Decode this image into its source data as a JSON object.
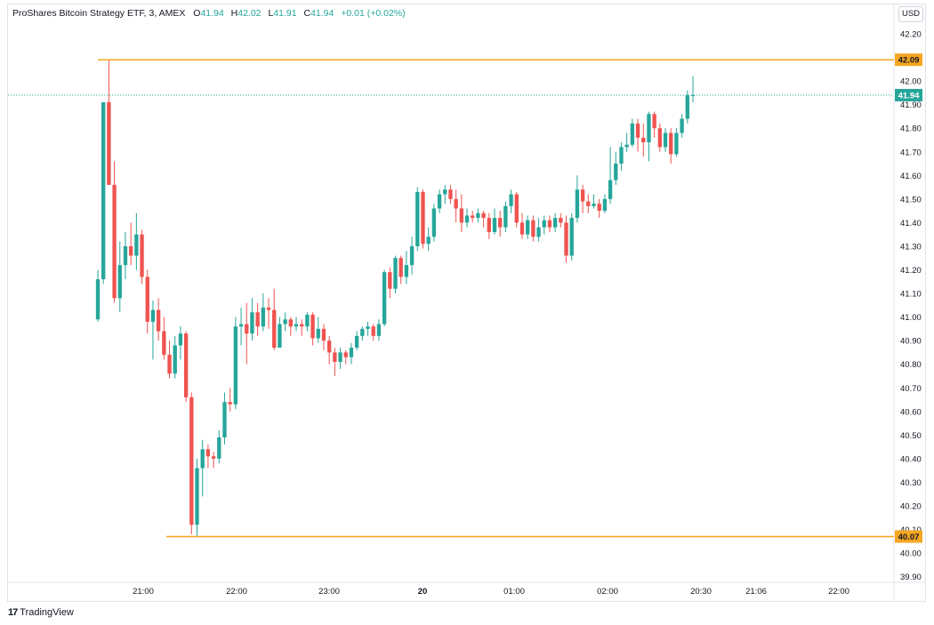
{
  "legend": {
    "title": "ProShares Bitcoin Strategy ETF, 3, AMEX",
    "o_key": "O",
    "o_val": "41.94",
    "h_key": "H",
    "h_val": "42.02",
    "l_key": "L",
    "l_val": "41.91",
    "c_key": "C",
    "c_val": "41.94",
    "change": "+0.01 (+0.02%)"
  },
  "currency": "USD",
  "footer": {
    "logo_mark": "17",
    "brand": "TradingView"
  },
  "colors": {
    "up": "#26a69a",
    "down": "#ef5350",
    "level": "#f5a623",
    "current": "#26a69a"
  },
  "chart_data": {
    "type": "candlestick",
    "title": "",
    "ylim": [
      39.85,
      42.27
    ],
    "y_ticks": [
      "42.20",
      "42.10",
      "42.00",
      "41.90",
      "41.80",
      "41.70",
      "41.60",
      "41.50",
      "41.40",
      "41.30",
      "41.20",
      "41.10",
      "41.00",
      "40.90",
      "40.80",
      "40.70",
      "40.60",
      "40.50",
      "40.40",
      "40.30",
      "40.20",
      "40.10",
      "40.00",
      "39.90"
    ],
    "x_ticks": [
      "21:00",
      "22:00",
      "23:00",
      "20",
      "01:00",
      "02:00",
      "20:30",
      "21:06",
      "22:00"
    ],
    "x_ticks_bold": [
      "20"
    ],
    "horizontal_levels": [
      42.09,
      40.07
    ],
    "current_price": 41.94,
    "price_labels": [
      "42.09",
      "41.94",
      "40.07"
    ],
    "candles": [
      [
        40.99,
        41.16,
        40.98,
        41.2
      ],
      [
        41.16,
        41.91,
        41.14,
        41.91
      ],
      [
        41.91,
        41.56,
        41.56,
        42.09
      ],
      [
        41.56,
        41.08,
        41.06,
        41.66
      ],
      [
        41.08,
        41.22,
        41.02,
        41.32
      ],
      [
        41.22,
        41.3,
        41.16,
        41.36
      ],
      [
        41.3,
        41.26,
        41.22,
        41.4
      ],
      [
        41.26,
        41.35,
        41.2,
        41.44
      ],
      [
        41.35,
        41.17,
        41.14,
        41.37
      ],
      [
        41.17,
        40.98,
        40.93,
        41.2
      ],
      [
        40.98,
        41.03,
        40.82,
        41.07
      ],
      [
        41.03,
        40.94,
        40.9,
        41.08
      ],
      [
        40.94,
        40.84,
        40.82,
        41.0
      ],
      [
        40.84,
        40.76,
        40.74,
        40.9
      ],
      [
        40.76,
        40.88,
        40.74,
        40.92
      ],
      [
        40.88,
        40.93,
        40.82,
        40.96
      ],
      [
        40.93,
        40.66,
        40.64,
        40.94
      ],
      [
        40.66,
        40.12,
        40.08,
        40.68
      ],
      [
        40.12,
        40.36,
        40.07,
        40.4
      ],
      [
        40.36,
        40.44,
        40.24,
        40.48
      ],
      [
        40.44,
        40.41,
        40.36,
        40.46
      ],
      [
        40.41,
        40.4,
        40.36,
        40.43
      ],
      [
        40.4,
        40.49,
        40.38,
        40.52
      ],
      [
        40.49,
        40.64,
        40.46,
        40.68
      ],
      [
        40.64,
        40.63,
        40.6,
        40.7
      ],
      [
        40.63,
        40.96,
        40.61,
        41.0
      ],
      [
        40.96,
        40.97,
        40.88,
        41.04
      ],
      [
        40.97,
        40.93,
        40.8,
        41.06
      ],
      [
        40.93,
        41.02,
        40.9,
        41.08
      ],
      [
        41.02,
        40.96,
        40.92,
        41.06
      ],
      [
        40.96,
        41.04,
        40.94,
        41.1
      ],
      [
        41.04,
        41.03,
        40.95,
        41.08
      ],
      [
        41.03,
        40.87,
        40.86,
        41.12
      ],
      [
        40.87,
        40.97,
        40.88,
        41.0
      ],
      [
        40.97,
        40.99,
        40.94,
        41.02
      ],
      [
        40.99,
        40.96,
        40.92,
        41.0
      ],
      [
        40.96,
        40.97,
        40.94,
        41.0
      ],
      [
        40.97,
        40.96,
        40.92,
        40.99
      ],
      [
        40.96,
        41.01,
        40.94,
        41.02
      ],
      [
        41.01,
        40.91,
        40.88,
        41.02
      ],
      [
        40.91,
        40.95,
        40.89,
        41.0
      ],
      [
        40.95,
        40.9,
        40.86,
        40.97
      ],
      [
        40.9,
        40.85,
        40.8,
        40.92
      ],
      [
        40.85,
        40.81,
        40.75,
        40.87
      ],
      [
        40.81,
        40.85,
        40.78,
        40.87
      ],
      [
        40.85,
        40.83,
        40.8,
        40.86
      ],
      [
        40.83,
        40.87,
        40.8,
        40.89
      ],
      [
        40.87,
        40.92,
        40.86,
        40.94
      ],
      [
        40.92,
        40.95,
        40.9,
        40.96
      ],
      [
        40.95,
        40.96,
        40.92,
        40.98
      ],
      [
        40.96,
        40.92,
        40.9,
        40.97
      ],
      [
        40.92,
        40.97,
        40.9,
        40.99
      ],
      [
        40.97,
        41.19,
        40.96,
        41.2
      ],
      [
        41.19,
        41.12,
        41.08,
        41.21
      ],
      [
        41.12,
        41.25,
        41.1,
        41.26
      ],
      [
        41.25,
        41.17,
        41.14,
        41.26
      ],
      [
        41.17,
        41.22,
        41.14,
        41.28
      ],
      [
        41.22,
        41.3,
        41.18,
        41.34
      ],
      [
        41.3,
        41.53,
        41.28,
        41.55
      ],
      [
        41.53,
        41.31,
        41.29,
        41.54
      ],
      [
        41.31,
        41.34,
        41.28,
        41.38
      ],
      [
        41.34,
        41.46,
        41.32,
        41.48
      ],
      [
        41.46,
        41.52,
        41.44,
        41.54
      ],
      [
        41.52,
        41.54,
        41.48,
        41.56
      ],
      [
        41.54,
        41.5,
        41.48,
        41.56
      ],
      [
        41.5,
        41.46,
        41.4,
        41.54
      ],
      [
        41.46,
        41.4,
        41.36,
        41.52
      ],
      [
        41.4,
        41.43,
        41.38,
        41.46
      ],
      [
        41.43,
        41.42,
        41.4,
        41.45
      ],
      [
        41.42,
        41.44,
        41.4,
        41.46
      ],
      [
        41.44,
        41.42,
        41.38,
        41.45
      ],
      [
        41.42,
        41.36,
        41.33,
        41.44
      ],
      [
        41.36,
        41.42,
        41.35,
        41.46
      ],
      [
        41.42,
        41.38,
        41.34,
        41.45
      ],
      [
        41.38,
        41.47,
        41.36,
        41.49
      ],
      [
        41.47,
        41.52,
        41.44,
        41.54
      ],
      [
        41.52,
        41.4,
        41.38,
        41.53
      ],
      [
        41.4,
        41.35,
        41.33,
        41.44
      ],
      [
        41.35,
        41.41,
        41.33,
        41.43
      ],
      [
        41.41,
        41.34,
        41.32,
        41.43
      ],
      [
        41.34,
        41.38,
        41.32,
        41.42
      ],
      [
        41.38,
        41.41,
        41.35,
        41.43
      ],
      [
        41.41,
        41.38,
        41.36,
        41.43
      ],
      [
        41.38,
        41.42,
        41.36,
        41.44
      ],
      [
        41.42,
        41.4,
        41.38,
        41.44
      ],
      [
        41.4,
        41.26,
        41.23,
        41.43
      ],
      [
        41.26,
        41.42,
        41.24,
        41.44
      ],
      [
        41.42,
        41.54,
        41.4,
        41.6
      ],
      [
        41.54,
        41.49,
        41.44,
        41.56
      ],
      [
        41.49,
        41.47,
        41.44,
        41.52
      ],
      [
        41.47,
        41.48,
        41.46,
        41.52
      ],
      [
        41.48,
        41.45,
        41.42,
        41.5
      ],
      [
        41.45,
        41.5,
        41.44,
        41.52
      ],
      [
        41.5,
        41.58,
        41.48,
        41.72
      ],
      [
        41.58,
        41.65,
        41.56,
        41.7
      ],
      [
        41.65,
        41.72,
        41.62,
        41.74
      ],
      [
        41.72,
        41.73,
        41.7,
        41.78
      ],
      [
        41.73,
        41.82,
        41.72,
        41.84
      ],
      [
        41.82,
        41.76,
        41.7,
        41.84
      ],
      [
        41.76,
        41.74,
        41.68,
        41.82
      ],
      [
        41.74,
        41.86,
        41.66,
        41.87
      ],
      [
        41.86,
        41.8,
        41.76,
        41.87
      ],
      [
        41.8,
        41.72,
        41.7,
        41.82
      ],
      [
        41.72,
        41.78,
        41.7,
        41.8
      ],
      [
        41.78,
        41.69,
        41.65,
        41.8
      ],
      [
        41.69,
        41.78,
        41.68,
        41.8
      ],
      [
        41.78,
        41.84,
        41.76,
        41.86
      ],
      [
        41.84,
        41.94,
        41.82,
        41.96
      ],
      [
        41.94,
        41.94,
        41.91,
        42.02
      ]
    ]
  }
}
